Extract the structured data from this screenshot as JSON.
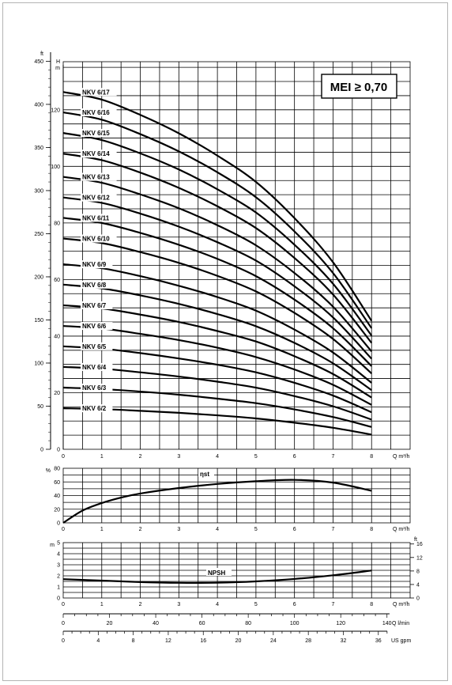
{
  "badge": {
    "text": "MEI ≥ 0,70"
  },
  "chart_data": [
    {
      "type": "line",
      "title": "",
      "xlabel": "Q m³/h",
      "ylabel": "H m",
      "ylabel_secondary": "ft",
      "xlim": [
        0,
        9
      ],
      "ylim": [
        0,
        137
      ],
      "x_ticks": [
        "0",
        "1",
        "2",
        "3",
        "4",
        "5",
        "6",
        "7",
        "8"
      ],
      "y_ticks_m": [
        "0",
        "20",
        "40",
        "60",
        "80",
        "100",
        "120"
      ],
      "y_ticks_ft": [
        "0",
        "50",
        "100",
        "150",
        "200",
        "250",
        "300",
        "350",
        "400",
        "450"
      ],
      "x": [
        0,
        1,
        2,
        3,
        4,
        5,
        6,
        7,
        8
      ],
      "series": [
        {
          "name": "NKV 6/2",
          "values": [
            14.5,
            14.2,
            13.6,
            12.9,
            12.0,
            10.9,
            9.4,
            7.6,
            5.2
          ]
        },
        {
          "name": "NKV 6/3",
          "values": [
            21.8,
            21.3,
            20.4,
            19.3,
            17.9,
            16.3,
            14.1,
            11.4,
            7.9
          ]
        },
        {
          "name": "NKV 6/4",
          "values": [
            29.1,
            28.5,
            27.2,
            25.7,
            23.9,
            21.8,
            18.8,
            15.2,
            10.5
          ]
        },
        {
          "name": "NKV 6/5",
          "values": [
            36.4,
            35.6,
            34.0,
            32.1,
            29.9,
            27.2,
            23.5,
            19.0,
            13.1
          ]
        },
        {
          "name": "NKV 6/6",
          "values": [
            43.6,
            42.7,
            40.8,
            38.6,
            35.9,
            32.6,
            28.2,
            22.8,
            15.7
          ]
        },
        {
          "name": "NKV 6/7",
          "values": [
            50.9,
            49.8,
            47.6,
            45.0,
            41.8,
            38.1,
            32.9,
            26.6,
            18.3
          ]
        },
        {
          "name": "NKV 6/8",
          "values": [
            58.2,
            56.9,
            54.4,
            51.4,
            47.8,
            43.5,
            37.6,
            30.4,
            20.9
          ]
        },
        {
          "name": "NKV 6/9",
          "values": [
            65.4,
            64.0,
            61.2,
            57.8,
            53.8,
            49.0,
            42.3,
            34.2,
            23.5
          ]
        },
        {
          "name": "NKV 6/10",
          "values": [
            74.5,
            72.9,
            69.7,
            65.9,
            61.3,
            55.8,
            48.2,
            39.0,
            26.8
          ]
        },
        {
          "name": "NKV 6/11",
          "values": [
            81.8,
            80.0,
            76.5,
            72.3,
            67.3,
            61.2,
            52.9,
            42.8,
            29.4
          ]
        },
        {
          "name": "NKV 6/12",
          "values": [
            89.0,
            87.1,
            83.3,
            78.7,
            73.2,
            66.7,
            57.6,
            46.6,
            32.0
          ]
        },
        {
          "name": "NKV 6/13",
          "values": [
            96.3,
            94.2,
            90.1,
            85.2,
            79.2,
            72.1,
            62.3,
            50.4,
            34.6
          ]
        },
        {
          "name": "NKV 6/14",
          "values": [
            104.5,
            102.2,
            97.8,
            92.4,
            85.9,
            78.2,
            67.6,
            54.7,
            37.6
          ]
        },
        {
          "name": "NKV 6/15",
          "values": [
            111.8,
            109.3,
            104.6,
            98.9,
            91.9,
            83.7,
            72.3,
            58.5,
            40.2
          ]
        },
        {
          "name": "NKV 6/16",
          "values": [
            119.1,
            116.5,
            111.4,
            105.3,
            97.9,
            89.1,
            77.0,
            62.3,
            42.8
          ]
        },
        {
          "name": "NKV 6/17",
          "values": [
            126.3,
            123.6,
            118.2,
            111.7,
            103.8,
            94.5,
            81.7,
            66.1,
            45.4
          ]
        }
      ]
    },
    {
      "type": "line",
      "title": "",
      "xlabel": "Q m³/h",
      "ylabel": "%",
      "xlim": [
        0,
        9
      ],
      "ylim": [
        0,
        80
      ],
      "x_ticks": [
        "0",
        "1",
        "2",
        "3",
        "4",
        "5",
        "6",
        "7",
        "8"
      ],
      "y_ticks": [
        "0",
        "20",
        "40",
        "60",
        "80"
      ],
      "x": [
        0,
        0.5,
        1,
        1.5,
        2,
        3,
        4,
        5,
        6,
        7,
        8
      ],
      "series": [
        {
          "name": "ηst",
          "values": [
            0,
            18,
            29,
            37,
            43,
            51,
            57,
            61,
            63,
            59,
            47
          ]
        }
      ]
    },
    {
      "type": "line",
      "title": "",
      "xlabel": "Q m³/h",
      "ylabel": "m",
      "ylabel_secondary": "ft",
      "xlim": [
        0,
        9
      ],
      "ylim": [
        0,
        5
      ],
      "x_ticks": [
        "0",
        "1",
        "2",
        "3",
        "4",
        "5",
        "6",
        "7",
        "8"
      ],
      "y_ticks_m": [
        "0",
        "1",
        "2",
        "3",
        "4",
        "5"
      ],
      "y_ticks_ft": [
        "0",
        "4",
        "8",
        "12",
        "16"
      ],
      "x_ticks_lmin": [
        "0",
        "20",
        "40",
        "60",
        "80",
        "100",
        "120",
        "140"
      ],
      "x_ticks_usgpm": [
        "0",
        "4",
        "8",
        "12",
        "16",
        "20",
        "24",
        "28",
        "32",
        "36"
      ],
      "x_unit_lmin": "Q l/min",
      "x_unit_usgpm": "US gpm",
      "x": [
        0,
        1,
        2,
        3,
        4,
        5,
        6,
        7,
        8
      ],
      "series": [
        {
          "name": "NPSH",
          "values": [
            1.7,
            1.57,
            1.44,
            1.37,
            1.38,
            1.5,
            1.72,
            2.05,
            2.48
          ]
        }
      ]
    }
  ]
}
